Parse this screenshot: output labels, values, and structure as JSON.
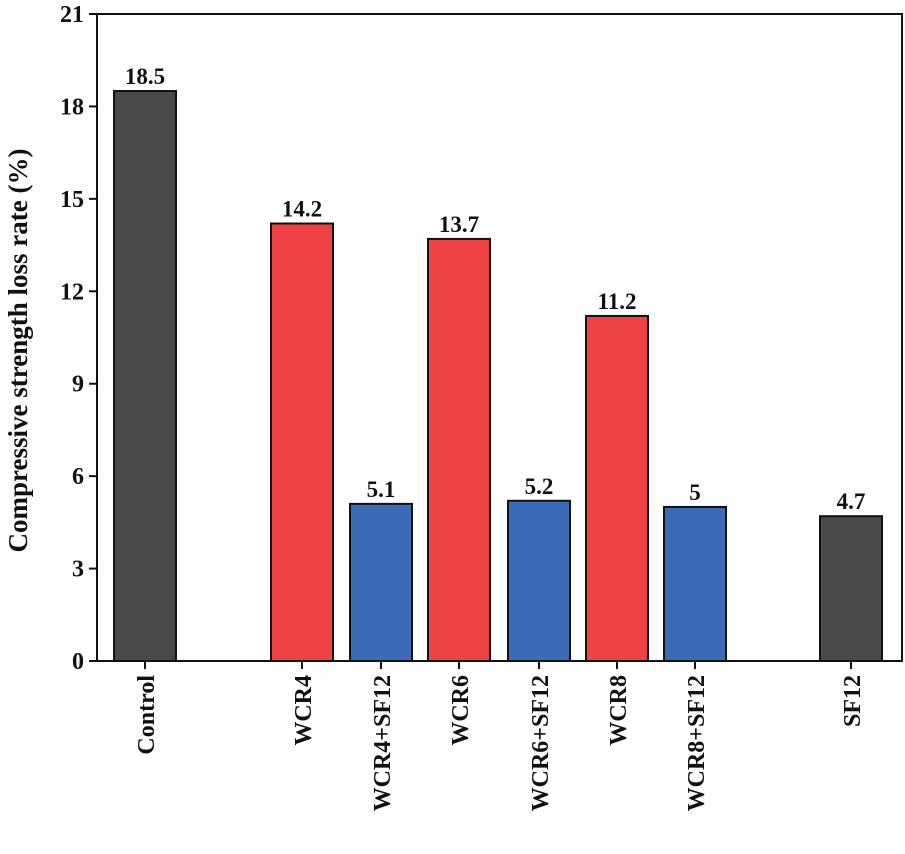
{
  "chart_data": {
    "type": "bar",
    "title": "",
    "xlabel": "",
    "ylabel": "Compressive strength loss rate (%)",
    "ylim": [
      0,
      21
    ],
    "yticks": [
      0,
      3,
      6,
      9,
      12,
      15,
      18,
      21
    ],
    "grid": false,
    "categories": [
      "Control",
      "WCR4",
      "WCR4+SF12",
      "WCR6",
      "WCR6+SF12",
      "WCR8",
      "WCR8+SF12",
      "SF12"
    ],
    "values": [
      18.5,
      14.2,
      5.1,
      13.7,
      5.2,
      11.2,
      5,
      4.7
    ],
    "data_labels": [
      "18.5",
      "14.2",
      "5.1",
      "13.7",
      "5.2",
      "11.2",
      "5",
      "4.7"
    ],
    "bar_colors": [
      "#4a4a4a",
      "#ee4245",
      "#3b6bb6",
      "#ee4245",
      "#3b6bb6",
      "#ee4245",
      "#3b6bb6",
      "#4a4a4a"
    ]
  }
}
